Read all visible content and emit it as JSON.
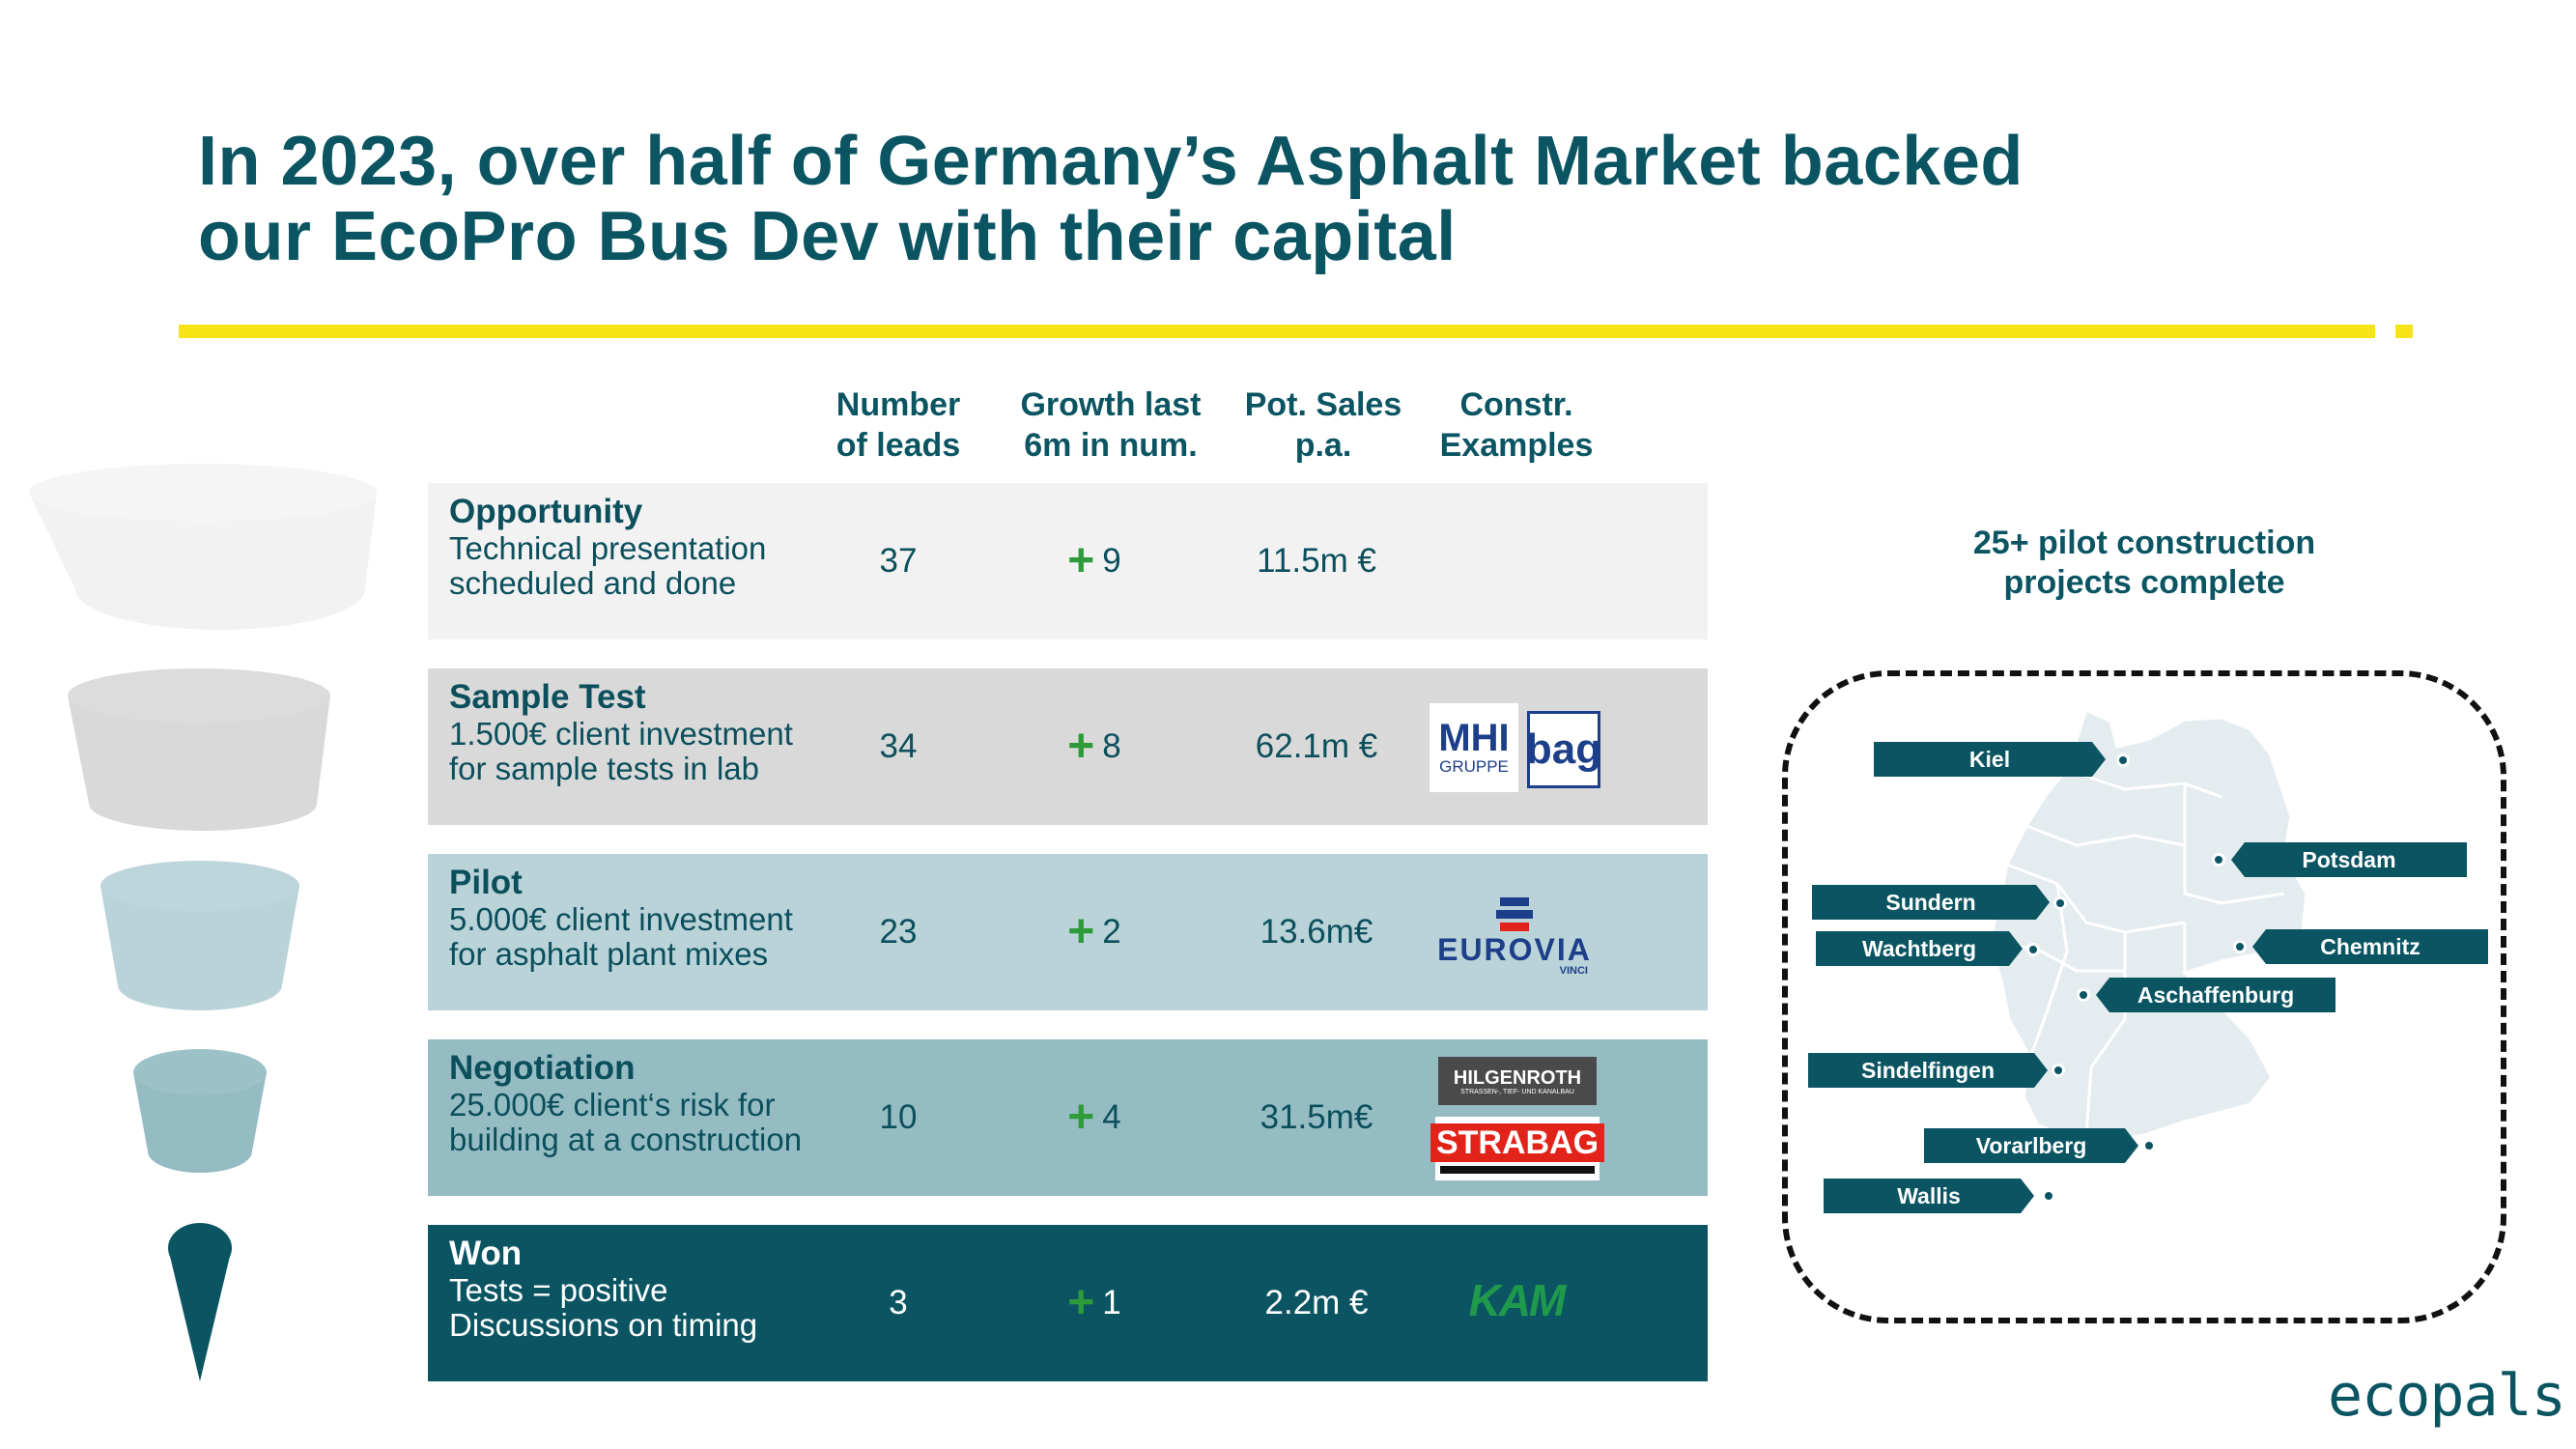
{
  "title": {
    "line1": "In 2023, over half of Germany’s Asphalt Market backed",
    "line2": "our EcoPro Bus Dev with their capital"
  },
  "table": {
    "headers": [
      {
        "line1": "Number",
        "line2": "of leads"
      },
      {
        "line1": "Growth last",
        "line2": "6m in num."
      },
      {
        "line1": "Pot. Sales",
        "line2": "p.a."
      },
      {
        "line1": "Constr.",
        "line2": "Examples"
      }
    ],
    "rows": [
      {
        "stage": "Opportunity",
        "desc1": "Technical presentation",
        "desc2": "scheduled and done",
        "leads": "37",
        "growth": "9",
        "sales": "11.5m €"
      },
      {
        "stage": "Sample Test",
        "desc1": "1.500€ client investment",
        "desc2": "for sample tests in lab",
        "leads": "34",
        "growth": "8",
        "sales": "62.1m €"
      },
      {
        "stage": "Pilot",
        "desc1": "5.000€ client investment",
        "desc2": "for asphalt plant mixes",
        "leads": "23",
        "growth": "2",
        "sales": "13.6m€"
      },
      {
        "stage": "Negotiation",
        "desc1": "25.000€ client‘s risk for",
        "desc2": "building at a construction",
        "leads": "10",
        "growth": "4",
        "sales": "31.5m€"
      },
      {
        "stage": "Won",
        "desc1": "Tests = positive",
        "desc2": "Discussions on timing",
        "leads": "3",
        "growth": "1",
        "sales": "2.2m €"
      }
    ]
  },
  "logos": {
    "mhi": {
      "line1": "MHI",
      "line2": "GRUPPE"
    },
    "bag": "bag",
    "eurovia": {
      "name": "EUROVIA",
      "sub": "VINCI"
    },
    "hilgenroth": {
      "name": "HILGENROTH",
      "sub": "STRASSEN-, TIEF- UND KANALBAU"
    },
    "strabag": "STRABAG",
    "kam": "KAM"
  },
  "map": {
    "title1": "25+ pilot construction",
    "title2": "projects complete",
    "cities": [
      "Kiel",
      "Potsdam",
      "Sundern",
      "Chemnitz",
      "Wachtberg",
      "Aschaffenburg",
      "Sindelfingen",
      "Vorarlberg",
      "Wallis"
    ]
  },
  "brand": "ecopals",
  "colors": {
    "primary": "#0b5563",
    "accent": "#f6e416",
    "plus": "#2e9b3a",
    "row1": "#f2f2f2",
    "row2": "#d9d9d9",
    "row3": "#b9d3d8",
    "row4": "#95bcc3",
    "row5": "#0b5563"
  }
}
